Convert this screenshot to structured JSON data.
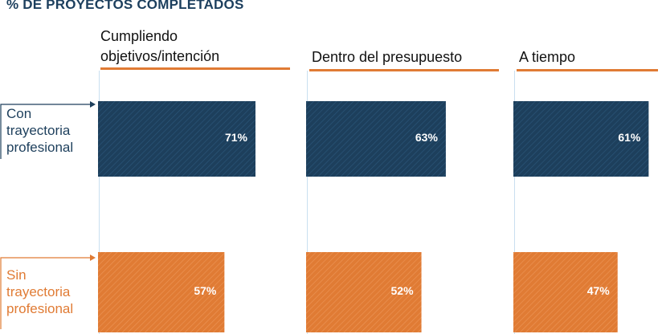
{
  "title": "% DE PROYECTOS COMPLETADOS",
  "colors": {
    "navy": "#1d3f5c",
    "orange": "#e07b34",
    "rule": "#e07b34",
    "gridline": "#c9dff0",
    "title": "#1c3f5e"
  },
  "legend": {
    "con": "Con trayectoria profesional",
    "sin": "Sin trayectoria profesional"
  },
  "chart_data": {
    "type": "bar",
    "orientation": "horizontal",
    "title": "% DE PROYECTOS COMPLETADOS",
    "categories": [
      "Cumpliendo objetivos/intención",
      "Dentro del presupuesto",
      "A tiempo"
    ],
    "series": [
      {
        "name": "Con trayectoria profesional",
        "values": [
          71,
          63,
          61
        ],
        "labels": [
          "71%",
          "63%",
          "61%"
        ]
      },
      {
        "name": "Sin trayectoria profesional",
        "values": [
          57,
          52,
          47
        ],
        "labels": [
          "57%",
          "52%",
          "47%"
        ]
      }
    ],
    "grid": false,
    "legend_position": "left"
  },
  "panels": [
    {
      "line1": "Cumpliendo",
      "line2": "objetivos/intención"
    },
    {
      "line1": "",
      "line2": "Dentro del presupuesto"
    },
    {
      "line1": "",
      "line2": "A tiempo"
    }
  ]
}
